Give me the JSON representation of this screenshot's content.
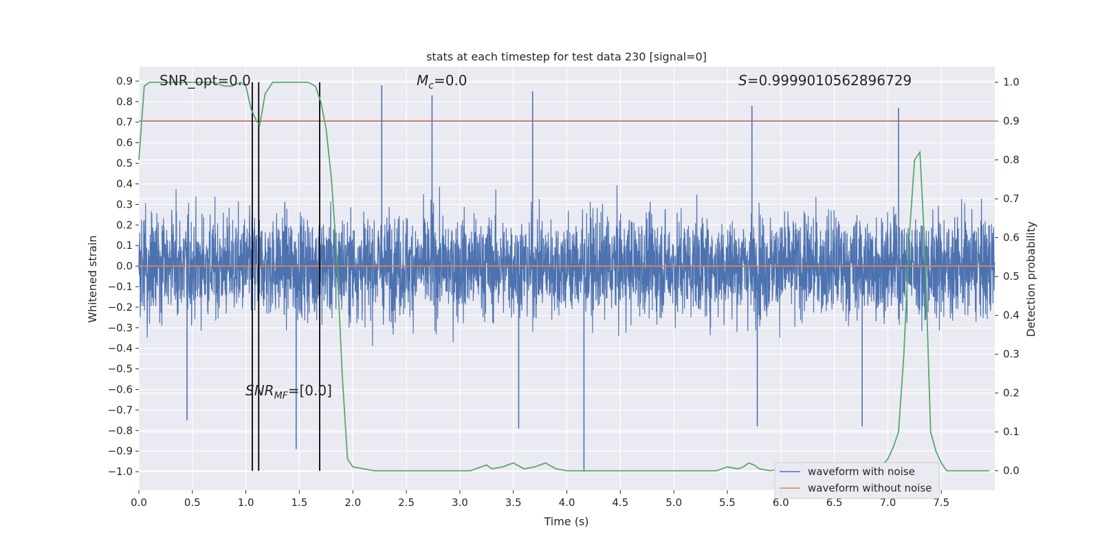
{
  "chart_data": {
    "type": "line",
    "title": "stats at each timestep for test data 230 [signal=0]",
    "xlabel": "Time (s)",
    "ylabel_left": "Whitened strain",
    "ylabel_right": "Detection probability",
    "xlim": [
      0.0,
      8.0
    ],
    "ylim_left": [
      -1.09,
      0.97
    ],
    "ylim_right": [
      -0.05,
      1.04
    ],
    "x_ticks": [
      "0.0",
      "0.5",
      "1.0",
      "1.5",
      "2.0",
      "2.5",
      "3.0",
      "3.5",
      "4.0",
      "4.5",
      "5.0",
      "5.5",
      "6.0",
      "6.5",
      "7.0",
      "7.5"
    ],
    "y_ticks_left": [
      "0.9",
      "0.8",
      "0.7",
      "0.6",
      "0.5",
      "0.4",
      "0.3",
      "0.2",
      "0.1",
      "0.0",
      "−0.1",
      "−0.2",
      "−0.3",
      "−0.4",
      "−0.5",
      "−0.6",
      "−0.7",
      "−0.8",
      "−0.9",
      "−1.0"
    ],
    "y_ticks_right": [
      "1.0",
      "0.9",
      "0.8",
      "0.7",
      "0.6",
      "0.5",
      "0.4",
      "0.3",
      "0.2",
      "0.1",
      "0.0"
    ],
    "grid": true,
    "annotations": {
      "snr_opt": "SNR_opt=0.0",
      "mc_symbol": "M",
      "mc_sub": "c",
      "mc_value": "=0.0",
      "s_symbol": "S",
      "s_value": "=0.9999010562896729",
      "snr_mf_symbol": "SNR",
      "snr_mf_sub": "MF",
      "snr_mf_value": "=[0.0]"
    },
    "threshold": {
      "value_right_axis": 0.9,
      "color": "#c44e52"
    },
    "vertical_markers_x": [
      1.06,
      1.12,
      1.69
    ],
    "legend": {
      "placement": "lower-right",
      "entries": [
        "waveform with noise",
        "waveform without noise"
      ]
    },
    "series": [
      {
        "name": "waveform with noise",
        "axis": "left",
        "color": "#4c72b0",
        "description_of_values": "noise band, envelope approx ±0.5 with spikes to ±0.9",
        "envelope_typical": 0.45,
        "spikes": [
          {
            "x": 0.45,
            "y": -0.75
          },
          {
            "x": 1.47,
            "y": -0.89
          },
          {
            "x": 2.27,
            "y": 0.88
          },
          {
            "x": 2.74,
            "y": 0.83
          },
          {
            "x": 3.68,
            "y": 0.85
          },
          {
            "x": 3.55,
            "y": -0.79
          },
          {
            "x": 4.16,
            "y": -1.0
          },
          {
            "x": 5.73,
            "y": 0.78
          },
          {
            "x": 6.76,
            "y": -0.78
          },
          {
            "x": 7.1,
            "y": 0.77
          },
          {
            "x": 5.78,
            "y": -0.78
          }
        ]
      },
      {
        "name": "waveform without noise",
        "axis": "left",
        "color": "#dd8452",
        "x": [
          0.0,
          8.0
        ],
        "y": [
          0.0,
          0.0
        ]
      },
      {
        "axis": "right",
        "color": "#55a868",
        "x": [
          0.0,
          0.05,
          0.1,
          0.2,
          0.3,
          0.4,
          0.5,
          0.6,
          0.7,
          0.8,
          0.87,
          0.95,
          1.0,
          1.05,
          1.1,
          1.13,
          1.18,
          1.25,
          1.3,
          1.4,
          1.5,
          1.58,
          1.65,
          1.7,
          1.75,
          1.8,
          1.85,
          1.9,
          1.95,
          2.0,
          2.1,
          2.2,
          2.3,
          2.4,
          2.5,
          2.6,
          2.7,
          2.8,
          2.9,
          3.0,
          3.1,
          3.2,
          3.25,
          3.3,
          3.4,
          3.45,
          3.5,
          3.6,
          3.7,
          3.8,
          3.9,
          4.0,
          4.1,
          4.2,
          4.3,
          4.4,
          4.5,
          4.6,
          4.7,
          4.8,
          4.9,
          5.0,
          5.1,
          5.2,
          5.3,
          5.4,
          5.5,
          5.6,
          5.65,
          5.7,
          5.75,
          5.8,
          5.9,
          6.0,
          6.1,
          6.15,
          6.2,
          6.3,
          6.4,
          6.5,
          6.6,
          6.7,
          6.8,
          6.9,
          7.0,
          7.05,
          7.1,
          7.15,
          7.2,
          7.25,
          7.3,
          7.35,
          7.4,
          7.45,
          7.5,
          7.55,
          7.6,
          7.7,
          7.8,
          7.95
        ],
        "y": [
          0.8,
          0.99,
          1.0,
          1.0,
          1.0,
          1.0,
          1.0,
          1.0,
          1.0,
          0.99,
          0.99,
          1.0,
          0.99,
          0.93,
          0.9,
          0.89,
          0.97,
          1.0,
          1.0,
          1.0,
          1.0,
          1.0,
          0.99,
          0.95,
          0.88,
          0.75,
          0.55,
          0.25,
          0.03,
          0.01,
          0.005,
          0.0,
          0.0,
          0.0,
          0.0,
          0.0,
          0.0,
          0.0,
          0.0,
          0.0,
          0.0,
          0.01,
          0.015,
          0.005,
          0.01,
          0.015,
          0.02,
          0.005,
          0.01,
          0.02,
          0.005,
          0.0,
          0.0,
          0.0,
          0.0,
          0.0,
          0.0,
          0.0,
          0.0,
          0.0,
          0.0,
          0.0,
          0.0,
          0.0,
          0.0,
          0.0,
          0.01,
          0.005,
          0.01,
          0.02,
          0.015,
          0.005,
          0.0,
          0.005,
          0.02,
          0.015,
          0.01,
          0.0,
          0.0,
          0.0,
          0.0,
          0.0,
          0.0,
          0.0,
          0.03,
          0.06,
          0.1,
          0.3,
          0.6,
          0.8,
          0.82,
          0.55,
          0.1,
          0.05,
          0.02,
          0.0,
          0.0,
          0.0,
          0.0,
          0.0
        ]
      }
    ]
  }
}
